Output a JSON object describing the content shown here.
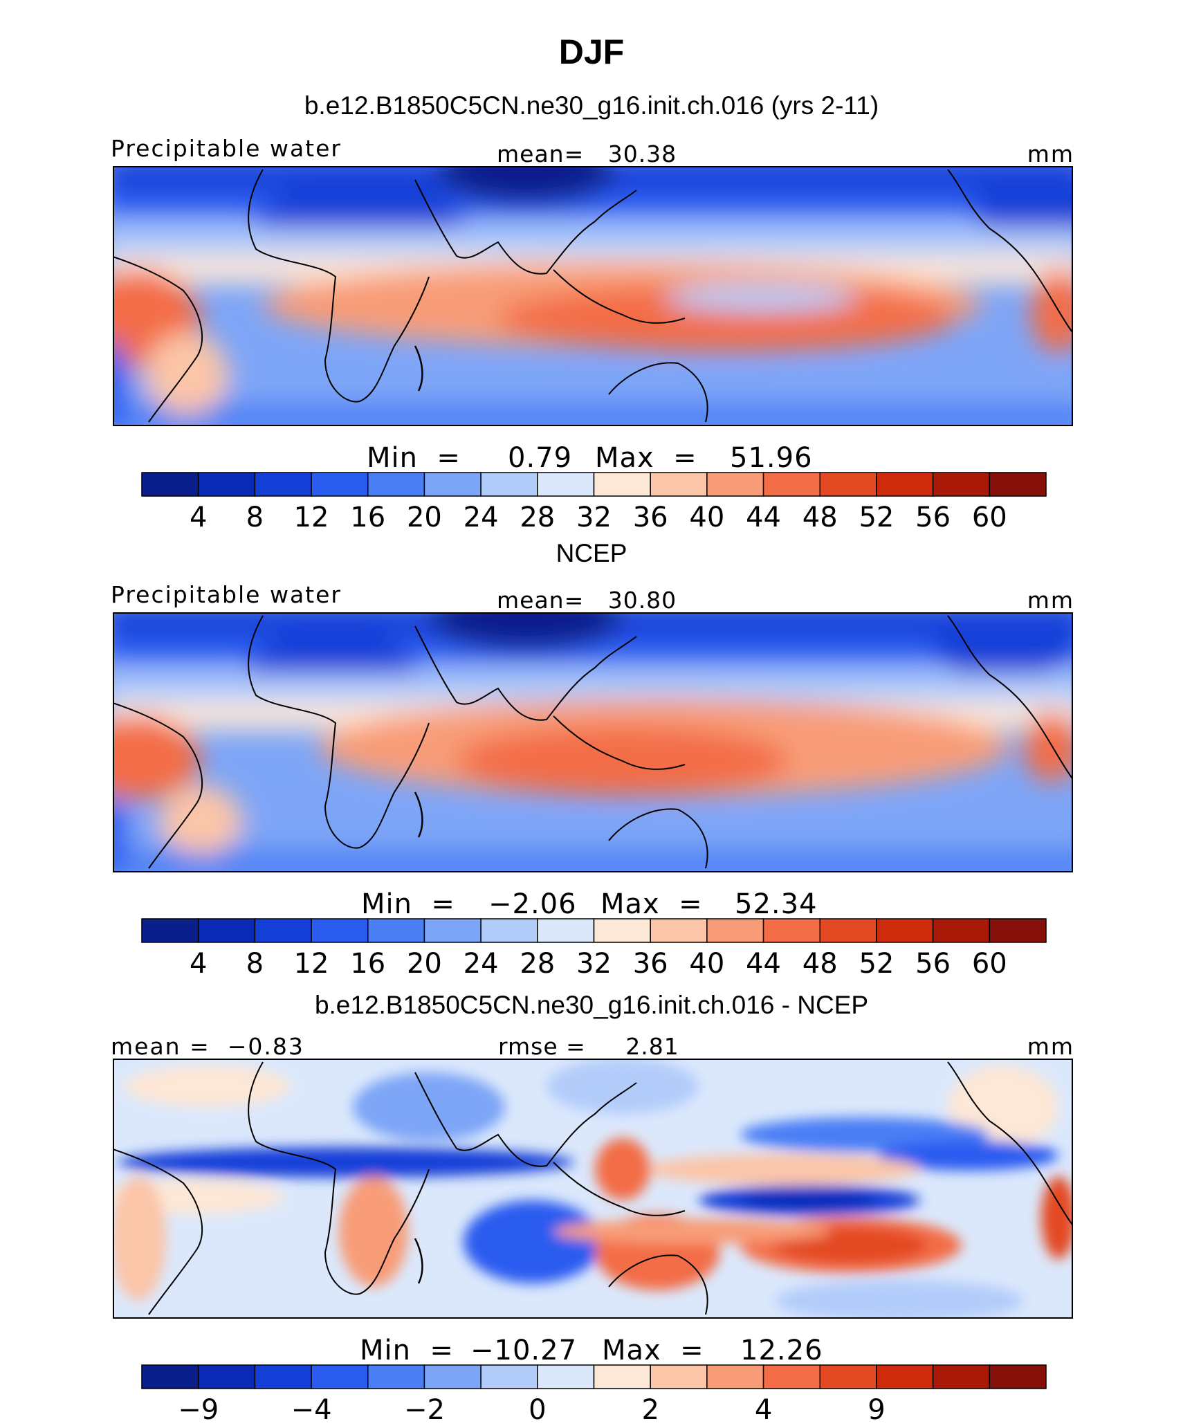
{
  "page": {
    "title": "DJF"
  },
  "palette": [
    "#0a1f8c",
    "#0b2ab5",
    "#1440d8",
    "#2a5cf0",
    "#4a7ef5",
    "#7da5f7",
    "#b2ccfa",
    "#dbe8fc",
    "#fde7d6",
    "#fbc5a7",
    "#f89c77",
    "#f36d47",
    "#e34a23",
    "#cf2b0d",
    "#a91a08",
    "#85110a"
  ],
  "chart_data": [
    {
      "type": "heatmap",
      "title": "b.e12.B1850C5CN.ne30_g16.init.ch.016 (yrs 2-11)",
      "left_label": "Precipitable water",
      "center_label": "mean=   30.38",
      "units": "mm",
      "stats": {
        "min_label": "Min  =",
        "min": "0.79",
        "max_label": "Max  =",
        "max": "51.96"
      },
      "colorbar_ticks": [
        "4",
        "8",
        "12",
        "16",
        "20",
        "24",
        "28",
        "32",
        "36",
        "40",
        "44",
        "48",
        "52",
        "56",
        "60"
      ]
    },
    {
      "type": "heatmap",
      "title": "NCEP",
      "left_label": "Precipitable water",
      "center_label": "mean=   30.80",
      "units": "mm",
      "stats": {
        "min_label": "Min  =",
        "min": "−2.06",
        "max_label": "Max  =",
        "max": "52.34"
      },
      "colorbar_ticks": [
        "4",
        "8",
        "12",
        "16",
        "20",
        "24",
        "28",
        "32",
        "36",
        "40",
        "44",
        "48",
        "52",
        "56",
        "60"
      ]
    },
    {
      "type": "heatmap",
      "title": "b.e12.B1850C5CN.ne30_g16.init.ch.016 - NCEP",
      "left_label": "mean =  −0.83",
      "center_label": "rmse =     2.81",
      "units": "mm",
      "stats": {
        "min_label": "Min  =",
        "min": "−10.27",
        "max_label": "Max  =",
        "max": "12.26"
      },
      "colorbar_ticks": [
        "−9",
        "",
        "−4",
        "",
        "−2",
        "",
        "0",
        "",
        "2",
        "",
        "4",
        "",
        "9",
        ""
      ]
    }
  ]
}
